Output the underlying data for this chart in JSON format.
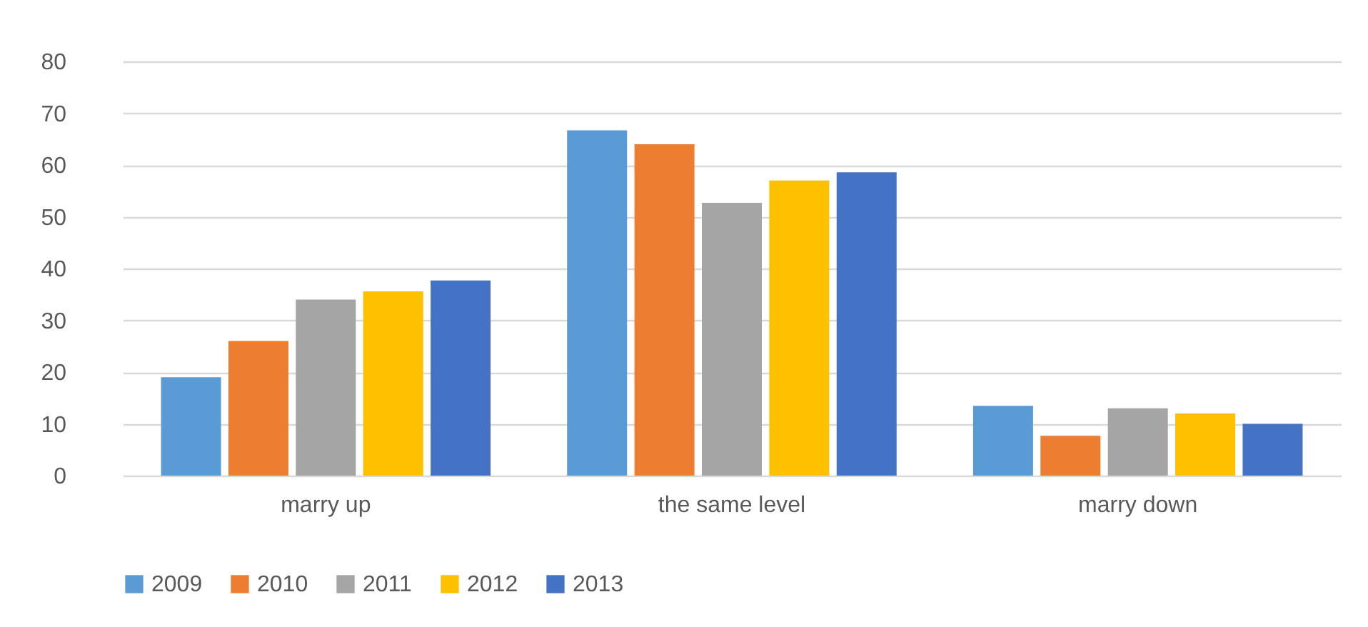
{
  "chart_data": {
    "type": "bar",
    "categories": [
      "marry up",
      "the same level",
      "marry down"
    ],
    "series": [
      {
        "name": "2009",
        "color": "#5b9bd5",
        "values": [
          19,
          66.7,
          13.5
        ]
      },
      {
        "name": "2010",
        "color": "#ed7d31",
        "values": [
          26,
          64,
          7.7
        ]
      },
      {
        "name": "2011",
        "color": "#a5a5a5",
        "values": [
          34,
          52.7,
          13
        ]
      },
      {
        "name": "2012",
        "color": "#ffc000",
        "values": [
          35.6,
          57,
          12
        ]
      },
      {
        "name": "2013",
        "color": "#4472c4",
        "values": [
          37.7,
          58.6,
          10
        ]
      }
    ],
    "ylim": [
      0,
      80
    ],
    "yticks": [
      0,
      10,
      20,
      30,
      40,
      50,
      60,
      70,
      80
    ],
    "grid": "y",
    "legend": "bottom"
  }
}
